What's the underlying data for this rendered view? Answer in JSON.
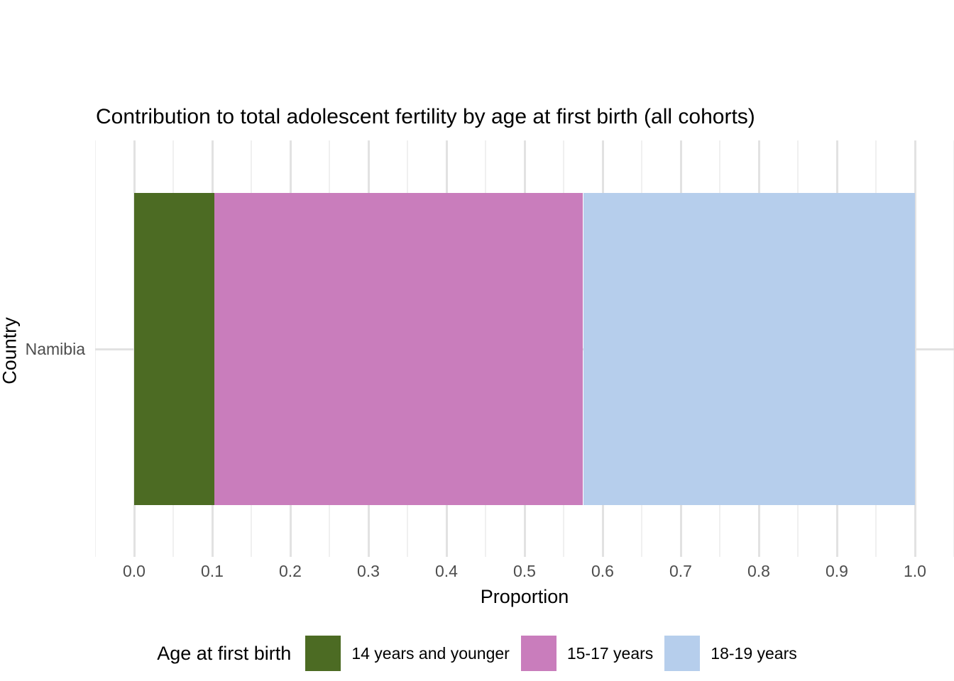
{
  "chart_data": {
    "type": "bar",
    "orientation": "horizontal",
    "stacked": true,
    "title": "Contribution to total adolescent fertility by age at first birth (all cohorts)",
    "xlabel": "Proportion",
    "ylabel": "Country",
    "categories": [
      "Namibia"
    ],
    "series": [
      {
        "name": "14 years and younger",
        "values": [
          0.103
        ],
        "color": "#4C6B23"
      },
      {
        "name": "15-17 years",
        "values": [
          0.472
        ],
        "color": "#C97DBC"
      },
      {
        "name": "18-19 years",
        "values": [
          0.425
        ],
        "color": "#B6CEEC"
      }
    ],
    "xlim": [
      -0.05,
      1.05
    ],
    "x_ticks": [
      "0.0",
      "0.1",
      "0.2",
      "0.3",
      "0.4",
      "0.5",
      "0.6",
      "0.7",
      "0.8",
      "0.9",
      "1.0"
    ],
    "x_tick_values": [
      0.0,
      0.1,
      0.2,
      0.3,
      0.4,
      0.5,
      0.6,
      0.7,
      0.8,
      0.9,
      1.0
    ],
    "grid": {
      "major": true,
      "minor": true,
      "minor_step": 0.05
    },
    "legend_position": "bottom",
    "legend_title": "Age at first birth"
  },
  "colors": {
    "background": "#FFFFFF",
    "grid_major": "#E2E2E2",
    "grid_minor": "#F0F0F0",
    "axis_text": "#4D4D4D",
    "title_text": "#000000"
  }
}
